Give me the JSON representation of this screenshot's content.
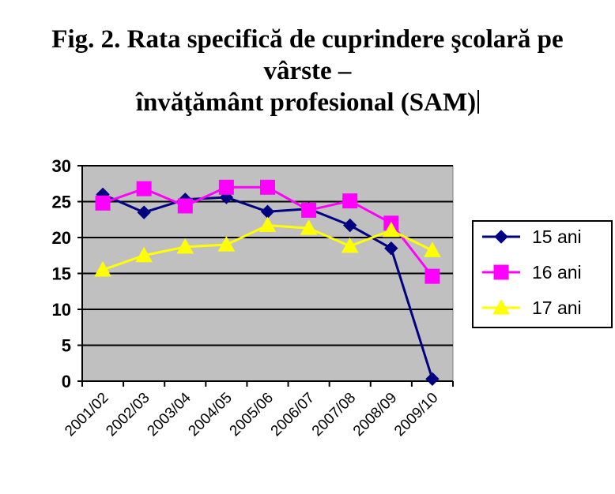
{
  "title_lines": [
    "Fig. 2. Rata specifică de cuprindere şcolară pe",
    "vârste –",
    "învăţământ profesional (SAM)"
  ],
  "chart_data": {
    "type": "line",
    "categories": [
      "2001/02",
      "2002/03",
      "2003/04",
      "2004/05",
      "2005/06",
      "2006/07",
      "2007/08",
      "2008/09",
      "2009/10"
    ],
    "series": [
      {
        "name": "15 ani",
        "color": "#000080",
        "marker": "diamond",
        "values": [
          26.0,
          23.5,
          25.3,
          25.6,
          23.6,
          24.0,
          21.7,
          18.5,
          0.3
        ]
      },
      {
        "name": "16 ani",
        "color": "#ff00ff",
        "marker": "square",
        "values": [
          24.8,
          26.8,
          24.4,
          27.0,
          27.0,
          23.8,
          25.1,
          22.0,
          14.6
        ]
      },
      {
        "name": "17 ani",
        "color": "#ffff00",
        "marker": "triangle",
        "values": [
          15.5,
          17.5,
          18.7,
          19.0,
          21.7,
          21.3,
          18.8,
          21.0,
          18.2
        ]
      }
    ],
    "ylim": [
      0,
      30
    ],
    "yticks": [
      0,
      5,
      10,
      15,
      20,
      25,
      30
    ],
    "grid": "horizontal",
    "plot_background": "#c0c0c0",
    "legend_position": "right"
  }
}
